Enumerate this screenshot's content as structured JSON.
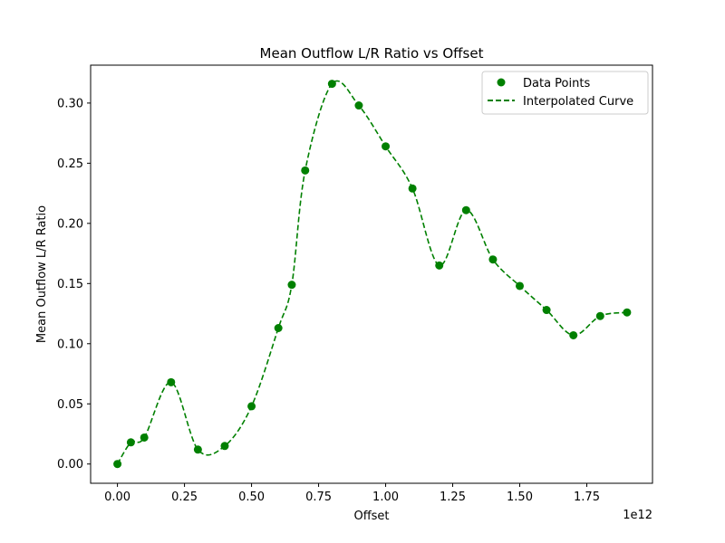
{
  "chart_data": {
    "type": "line",
    "title": "Mean Outflow L/R Ratio vs Offset",
    "xlabel": "Offset",
    "ylabel": "Mean Outflow L/R Ratio",
    "x_offset_label": "1e12",
    "xlim": [
      -0.1,
      1.995
    ],
    "ylim": [
      -0.016,
      0.3315
    ],
    "x_ticks": [
      0.0,
      0.25,
      0.5,
      0.75,
      1.0,
      1.25,
      1.5,
      1.75
    ],
    "x_tick_labels": [
      "0.00",
      "0.25",
      "0.50",
      "0.75",
      "1.00",
      "1.25",
      "1.50",
      "1.75"
    ],
    "y_ticks": [
      0.0,
      0.05,
      0.1,
      0.15,
      0.2,
      0.25,
      0.3
    ],
    "y_tick_labels": [
      "0.00",
      "0.05",
      "0.10",
      "0.15",
      "0.20",
      "0.25",
      "0.30"
    ],
    "grid": false,
    "legend_position": "upper right",
    "color": "#008000",
    "series": [
      {
        "name": "Data Points",
        "kind": "scatter",
        "x": [
          0.0,
          0.05,
          0.1,
          0.2,
          0.3,
          0.4,
          0.5,
          0.6,
          0.65,
          0.7,
          0.8,
          0.9,
          1.0,
          1.1,
          1.2,
          1.3,
          1.4,
          1.5,
          1.6,
          1.7,
          1.8,
          1.9
        ],
        "y": [
          0.0,
          0.018,
          0.022,
          0.068,
          0.012,
          0.015,
          0.048,
          0.113,
          0.149,
          0.244,
          0.316,
          0.298,
          0.264,
          0.229,
          0.165,
          0.211,
          0.17,
          0.148,
          0.128,
          0.107,
          0.123,
          0.126
        ]
      },
      {
        "name": "Interpolated Curve",
        "kind": "line",
        "style": "dashed",
        "x": [
          0.0,
          0.05,
          0.1,
          0.2,
          0.3,
          0.4,
          0.5,
          0.6,
          0.65,
          0.7,
          0.8,
          0.9,
          1.0,
          1.1,
          1.2,
          1.3,
          1.4,
          1.5,
          1.6,
          1.7,
          1.8,
          1.9
        ],
        "y": [
          0.0,
          0.018,
          0.022,
          0.068,
          0.012,
          0.015,
          0.048,
          0.113,
          0.149,
          0.244,
          0.316,
          0.298,
          0.264,
          0.229,
          0.165,
          0.211,
          0.17,
          0.148,
          0.128,
          0.107,
          0.123,
          0.126
        ]
      }
    ]
  }
}
